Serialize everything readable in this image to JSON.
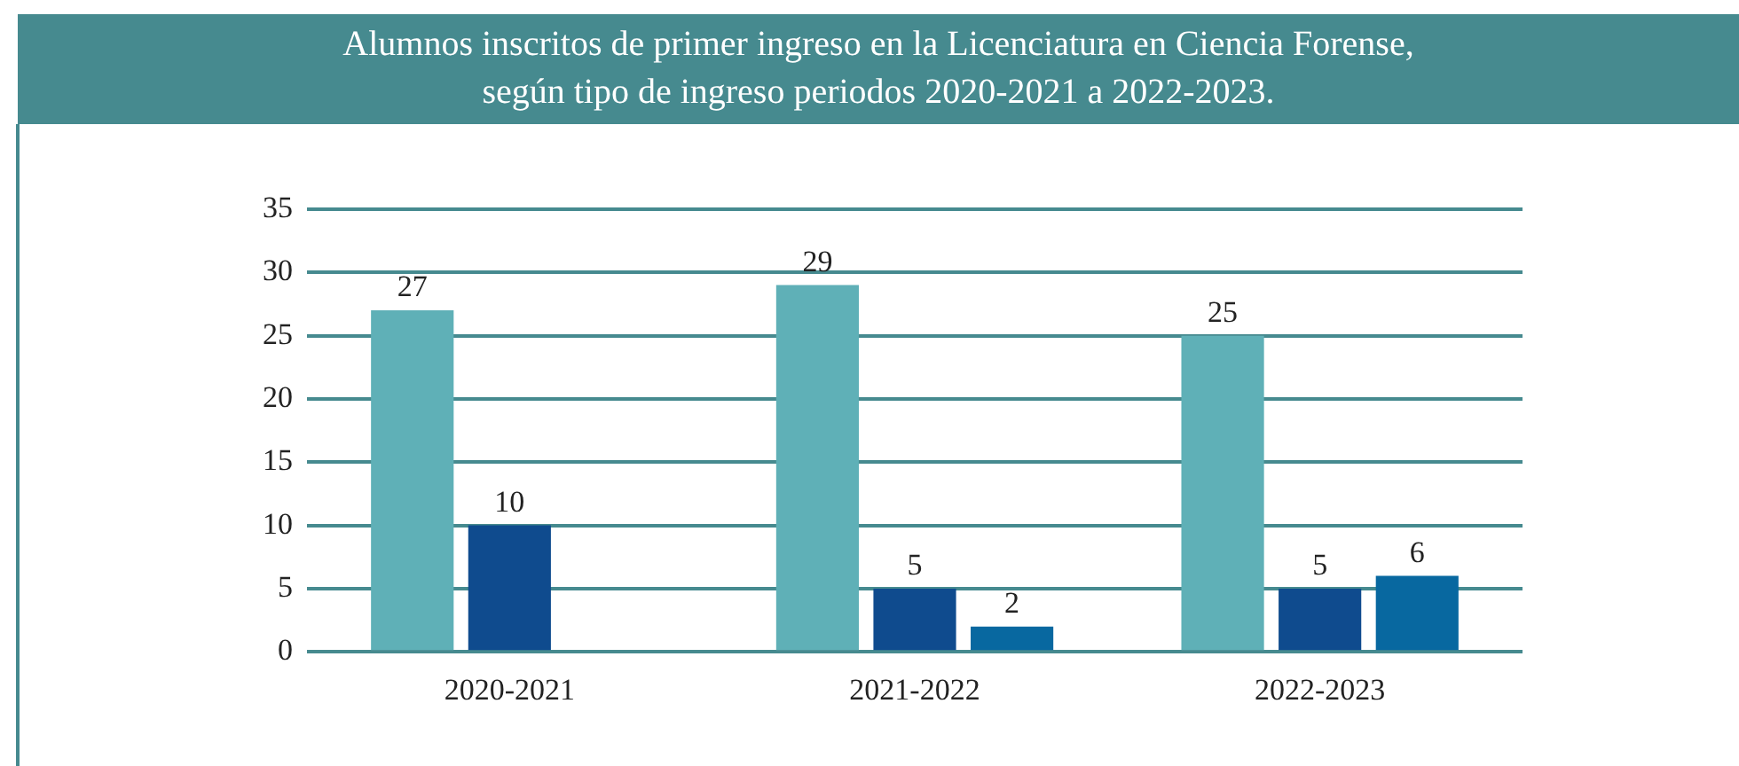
{
  "chart_data": {
    "type": "bar",
    "title": "Alumnos inscritos de primer ingreso en la Licenciatura en Ciencia Forense,\nsegún tipo de ingreso periodos 2020-2021 a 2022-2023.",
    "categories": [
      "2020-2021",
      "2021-2022",
      "2022-2023"
    ],
    "series": [
      {
        "color": "#5fb0b7",
        "values": [
          27,
          29,
          25
        ]
      },
      {
        "color": "#0f4b8e",
        "values": [
          10,
          5,
          5
        ]
      },
      {
        "color": "#0868a0",
        "values": [
          null,
          2,
          6
        ]
      }
    ],
    "ylim": [
      0,
      35
    ],
    "yticks": [
      0,
      5,
      10,
      15,
      20,
      25,
      30,
      35
    ],
    "grid": "y",
    "data_labels": true,
    "legend": false
  }
}
